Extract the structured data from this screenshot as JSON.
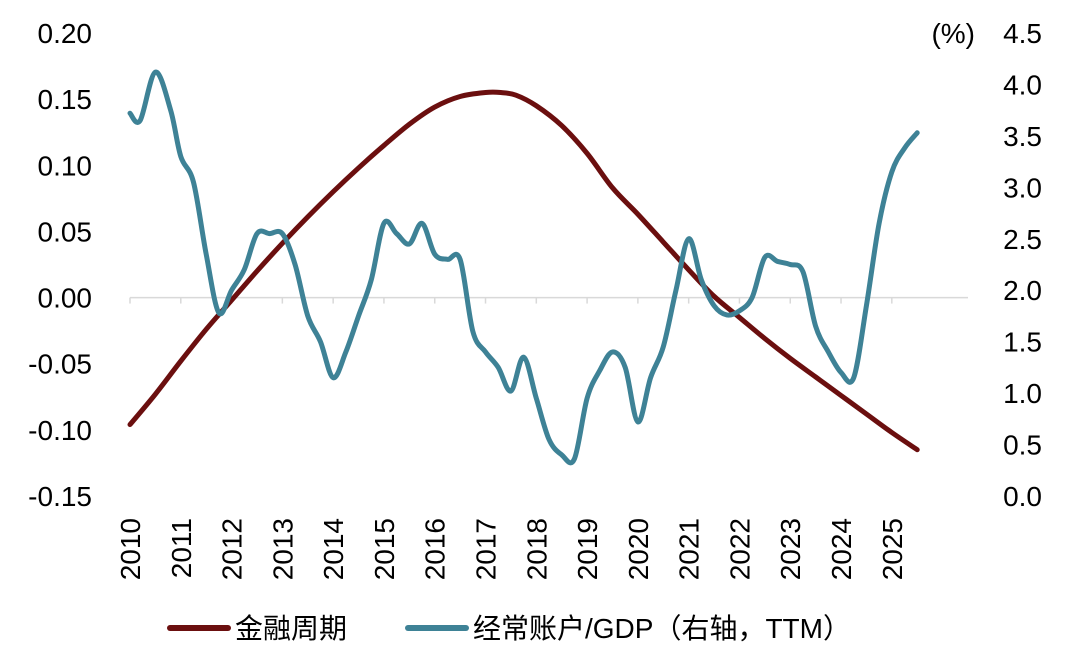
{
  "chart_data": {
    "type": "line",
    "title": "",
    "left_axis": {
      "ylim": [
        -0.15,
        0.2
      ],
      "ticks": [
        "0.20",
        "0.15",
        "0.10",
        "0.05",
        "0.00",
        "-0.05",
        "-0.10",
        "-0.15"
      ],
      "tick_values": [
        0.2,
        0.15,
        0.1,
        0.05,
        0.0,
        -0.05,
        -0.1,
        -0.15
      ]
    },
    "right_axis": {
      "unit_label": "(%)",
      "ylim": [
        0.0,
        4.5
      ],
      "ticks": [
        "4.5",
        "4.0",
        "3.5",
        "3.0",
        "2.5",
        "2.0",
        "1.5",
        "1.0",
        "0.5",
        "0.0"
      ],
      "tick_values": [
        4.5,
        4.0,
        3.5,
        3.0,
        2.5,
        2.0,
        1.5,
        1.0,
        0.5,
        0.0
      ]
    },
    "x_axis": {
      "xlim": [
        2010.0,
        2026.5
      ],
      "ticks": [
        "2010",
        "2011",
        "2012",
        "2013",
        "2014",
        "2015",
        "2016",
        "2017",
        "2018",
        "2019",
        "2020",
        "2021",
        "2022",
        "2023",
        "2024",
        "2025"
      ],
      "tick_values": [
        2010,
        2011,
        2012,
        2013,
        2014,
        2015,
        2016,
        2017,
        2018,
        2019,
        2020,
        2021,
        2022,
        2023,
        2024,
        2025
      ]
    },
    "legend_position": "bottom",
    "series": [
      {
        "name": "金融周期",
        "axis": "left",
        "color": "#6B0F0F",
        "x": [
          2010.0,
          2010.5,
          2011.0,
          2011.5,
          2012.0,
          2012.5,
          2013.0,
          2013.5,
          2014.0,
          2014.5,
          2015.0,
          2015.5,
          2016.0,
          2016.5,
          2017.0,
          2017.3,
          2017.6,
          2018.0,
          2018.5,
          2019.0,
          2019.5,
          2020.0,
          2020.5,
          2021.0,
          2021.5,
          2022.0,
          2022.5,
          2023.0,
          2023.5,
          2024.0,
          2024.5,
          2025.0,
          2025.5
        ],
        "values": [
          -0.096,
          -0.073,
          -0.048,
          -0.024,
          -0.002,
          0.02,
          0.041,
          0.061,
          0.08,
          0.098,
          0.115,
          0.131,
          0.144,
          0.152,
          0.155,
          0.155,
          0.153,
          0.145,
          0.13,
          0.109,
          0.083,
          0.063,
          0.042,
          0.021,
          0.001,
          -0.015,
          -0.031,
          -0.046,
          -0.06,
          -0.074,
          -0.088,
          -0.102,
          -0.115
        ]
      },
      {
        "name": "经常账户/GDP（右轴，TTM）",
        "axis": "right",
        "color": "#3E8296",
        "x": [
          2010.0,
          2010.2,
          2010.5,
          2010.8,
          2011.0,
          2011.25,
          2011.5,
          2011.75,
          2012.0,
          2012.25,
          2012.5,
          2012.75,
          2013.0,
          2013.25,
          2013.5,
          2013.75,
          2014.0,
          2014.25,
          2014.5,
          2014.75,
          2015.0,
          2015.25,
          2015.5,
          2015.75,
          2016.0,
          2016.25,
          2016.5,
          2016.75,
          2017.0,
          2017.25,
          2017.5,
          2017.75,
          2018.0,
          2018.25,
          2018.5,
          2018.75,
          2019.0,
          2019.25,
          2019.5,
          2019.75,
          2020.0,
          2020.25,
          2020.5,
          2020.75,
          2021.0,
          2021.25,
          2021.5,
          2021.75,
          2022.0,
          2022.25,
          2022.5,
          2022.75,
          2023.0,
          2023.25,
          2023.5,
          2023.75,
          2024.0,
          2024.25,
          2024.5,
          2024.75,
          2025.0,
          2025.25,
          2025.5
        ],
        "values": [
          3.72,
          3.65,
          4.12,
          3.75,
          3.3,
          3.05,
          2.35,
          1.78,
          2.0,
          2.2,
          2.55,
          2.55,
          2.55,
          2.25,
          1.75,
          1.5,
          1.15,
          1.4,
          1.75,
          2.1,
          2.65,
          2.55,
          2.45,
          2.65,
          2.35,
          2.3,
          2.3,
          1.6,
          1.4,
          1.25,
          1.02,
          1.35,
          0.95,
          0.55,
          0.4,
          0.36,
          0.95,
          1.22,
          1.4,
          1.25,
          0.72,
          1.15,
          1.45,
          2.0,
          2.5,
          2.1,
          1.85,
          1.76,
          1.8,
          1.93,
          2.32,
          2.28,
          2.25,
          2.18,
          1.65,
          1.4,
          1.2,
          1.15,
          1.85,
          2.65,
          3.15,
          3.38,
          3.53
        ]
      }
    ]
  }
}
